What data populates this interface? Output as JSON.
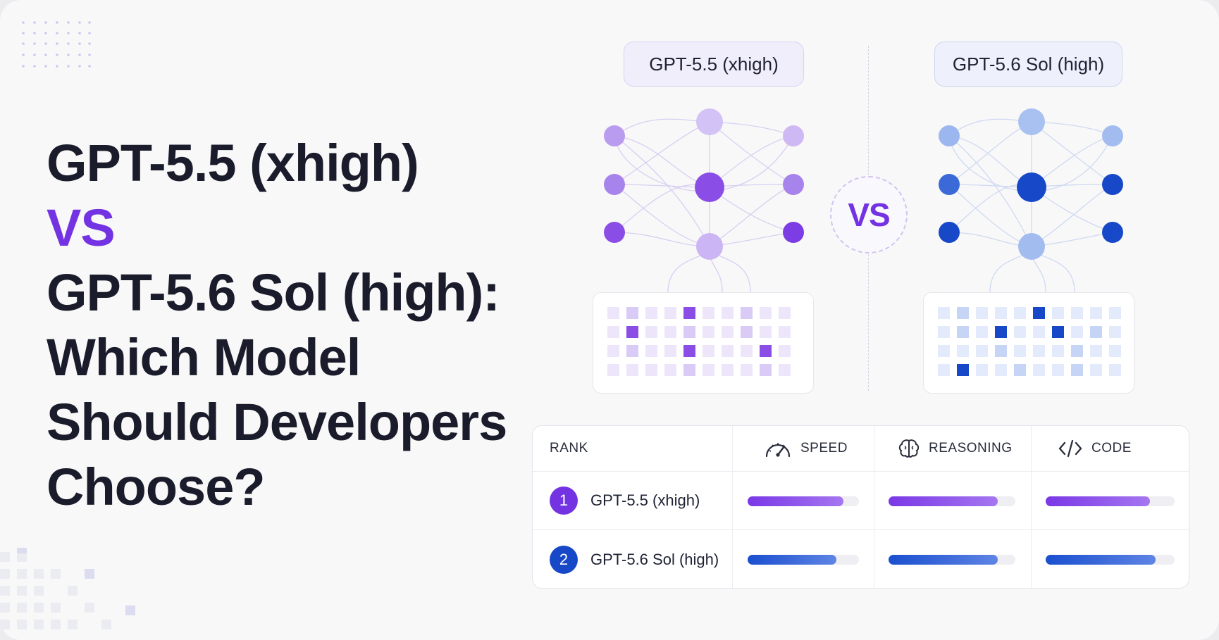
{
  "headline": {
    "line1": "GPT-5.5 (xhigh)",
    "vs": "VS",
    "line3": "GPT-5.6 Sol (high):",
    "line4": "Which Model",
    "line5": "Should Developers",
    "line6": "Choose?"
  },
  "diagram": {
    "left_label": "GPT-5.5 (xhigh)",
    "right_label": "GPT-5.6 Sol (high)",
    "vs_badge": "VS"
  },
  "comparison_table": {
    "headers": {
      "rank": "RANK",
      "speed": "SPEED",
      "reasoning": "REASONING",
      "code": "CODE"
    },
    "header_icons": {
      "speed": "speedometer-icon",
      "reasoning": "brain-icon",
      "code": "code-brackets-icon"
    },
    "rows": [
      {
        "rank": "1",
        "model": "GPT-5.5 (xhigh)",
        "speed": 0.86,
        "reasoning": 0.86,
        "code": 0.81,
        "color": "#7433e3"
      },
      {
        "rank": "2",
        "model": "GPT-5.6 Sol (high)",
        "speed": 0.8,
        "reasoning": 0.86,
        "code": 0.85,
        "color": "#1748c8"
      }
    ]
  },
  "colors": {
    "accent_purple": "#7433e3",
    "accent_blue": "#1748c8",
    "heading": "#1a1c2b",
    "background": "#f8f8f8"
  }
}
